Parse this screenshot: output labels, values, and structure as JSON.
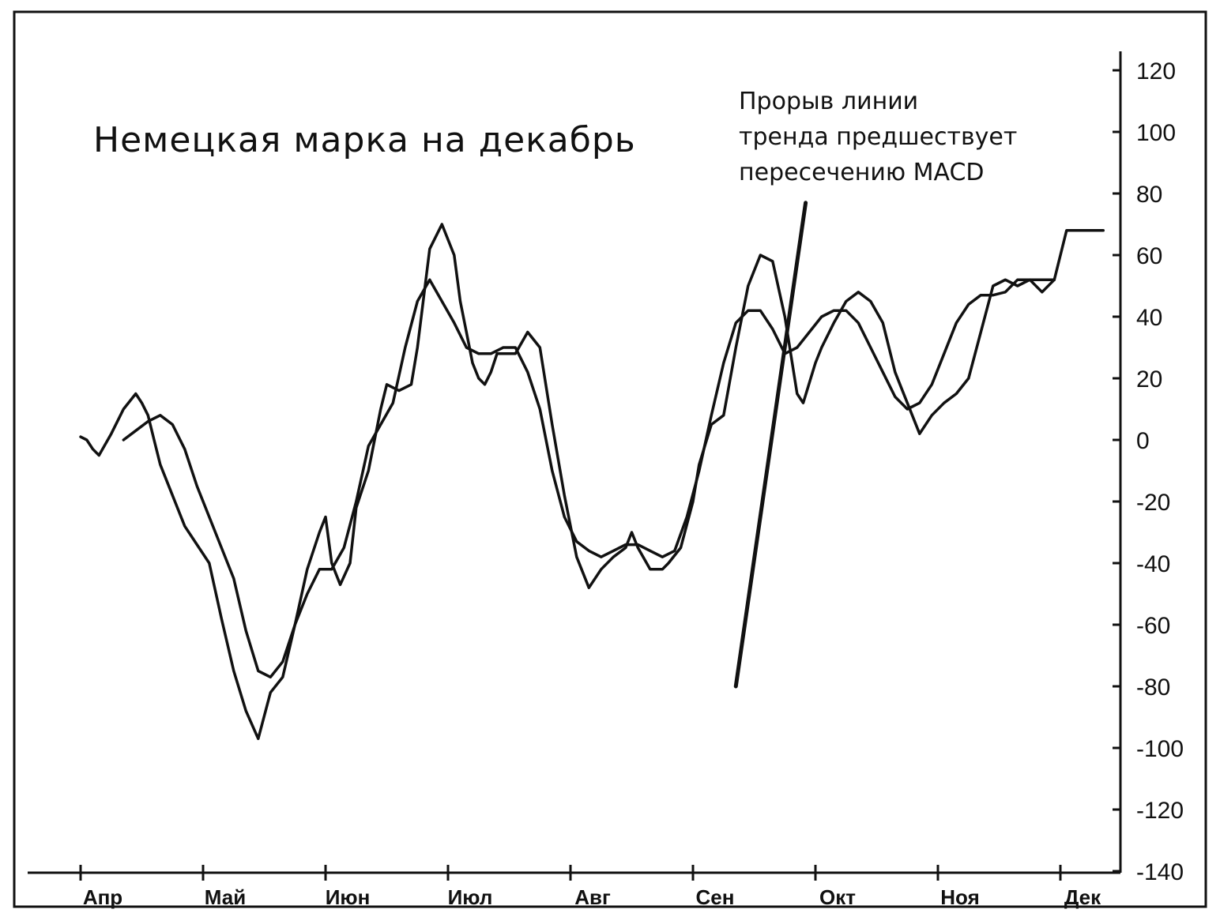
{
  "chart_data": {
    "type": "line",
    "title": "Немецкая марка на декабрь",
    "annotation": [
      "Прорыв линии",
      "тренда предшествует",
      "пересечению MACD"
    ],
    "months": [
      "Апр",
      "Май",
      "Июн",
      "Июл",
      "Авг",
      "Сен",
      "Окт",
      "Ноя",
      "Дек"
    ],
    "yticks": [
      "120",
      "100",
      "80",
      "60",
      "40",
      "20",
      "0",
      "-20",
      "-40",
      "-60",
      "-80",
      "-100",
      "-120",
      "-140"
    ],
    "ylim": [
      -140,
      120
    ],
    "xlim": [
      0,
      8.5
    ],
    "series": [
      {
        "x": [
          0,
          0.05,
          0.1,
          0.15,
          0.25,
          0.35,
          0.45,
          0.5,
          0.55,
          0.6,
          0.65,
          0.75,
          0.85,
          0.95,
          1.05,
          1.15,
          1.25,
          1.35,
          1.45,
          1.55,
          1.65,
          1.75,
          1.85,
          1.95,
          2.0,
          2.05,
          2.12,
          2.2,
          2.25,
          2.35,
          2.45,
          2.5,
          2.6,
          2.7,
          2.75,
          2.85,
          2.95,
          3.05,
          3.1,
          3.15,
          3.2,
          3.25,
          3.3,
          3.35,
          3.4,
          3.45,
          3.55,
          3.65,
          3.75,
          3.85,
          3.95,
          4.05,
          4.15,
          4.25,
          4.35,
          4.45,
          4.5,
          4.55,
          4.65,
          4.75,
          4.8,
          4.9,
          5.0,
          5.05,
          5.15,
          5.25,
          5.35,
          5.45,
          5.55,
          5.65,
          5.75,
          5.85,
          5.9,
          6.0,
          6.05,
          6.15,
          6.25,
          6.35,
          6.45,
          6.55,
          6.65,
          6.75,
          6.85,
          6.95,
          7.05,
          7.15,
          7.25,
          7.35,
          7.45,
          7.55,
          7.65,
          7.75,
          7.85,
          7.95,
          8.05,
          8.15,
          8.25,
          8.35
        ],
        "values": [
          1,
          0,
          -3,
          -5,
          2,
          10,
          15,
          12,
          8,
          0,
          -8,
          -18,
          -28,
          -34,
          -40,
          -58,
          -75,
          -88,
          -97,
          -82,
          -77,
          -60,
          -42,
          -30,
          -25,
          -40,
          -47,
          -40,
          -22,
          -10,
          10,
          18,
          16,
          18,
          30,
          62,
          70,
          60,
          45,
          35,
          25,
          20,
          18,
          22,
          28,
          28,
          28,
          35,
          30,
          5,
          -18,
          -38,
          -48,
          -42,
          -38,
          -35,
          -30,
          -35,
          -42,
          -42,
          -40,
          -35,
          -20,
          -8,
          5,
          8,
          30,
          50,
          60,
          58,
          40,
          15,
          12,
          25,
          30,
          38,
          45,
          48,
          45,
          38,
          22,
          12,
          2,
          8,
          12,
          15,
          20,
          35,
          50,
          52,
          50,
          52,
          48,
          52,
          68,
          68,
          68,
          68
        ]
      },
      {
        "x": [
          0.35,
          0.45,
          0.55,
          0.65,
          0.75,
          0.85,
          0.95,
          1.05,
          1.15,
          1.25,
          1.35,
          1.45,
          1.55,
          1.65,
          1.75,
          1.85,
          1.95,
          2.05,
          2.15,
          2.25,
          2.35,
          2.45,
          2.55,
          2.65,
          2.75,
          2.85,
          2.95,
          3.05,
          3.15,
          3.25,
          3.35,
          3.45,
          3.55,
          3.65,
          3.75,
          3.85,
          3.95,
          4.05,
          4.15,
          4.25,
          4.35,
          4.45,
          4.55,
          4.65,
          4.75,
          4.85,
          4.95,
          5.05,
          5.15,
          5.25,
          5.35,
          5.45,
          5.55,
          5.65,
          5.75,
          5.85,
          5.95,
          6.05,
          6.15,
          6.25,
          6.35,
          6.45,
          6.55,
          6.65,
          6.75,
          6.85,
          6.95,
          7.05,
          7.15,
          7.25,
          7.35,
          7.45,
          7.55,
          7.65,
          7.75,
          7.85,
          7.95
        ],
        "values": [
          0,
          3,
          6,
          8,
          5,
          -3,
          -15,
          -25,
          -35,
          -45,
          -62,
          -75,
          -77,
          -72,
          -60,
          -50,
          -42,
          -42,
          -35,
          -20,
          -2,
          5,
          12,
          30,
          45,
          52,
          45,
          38,
          30,
          28,
          28,
          30,
          30,
          22,
          10,
          -10,
          -25,
          -33,
          -36,
          -38,
          -36,
          -34,
          -34,
          -36,
          -38,
          -36,
          -25,
          -10,
          8,
          25,
          38,
          42,
          42,
          36,
          28,
          30,
          35,
          40,
          42,
          42,
          38,
          30,
          22,
          14,
          10,
          12,
          18,
          28,
          38,
          44,
          47,
          47,
          48,
          52,
          52,
          52,
          52
        ]
      }
    ],
    "trendline": {
      "x": [
        5.35,
        5.92
      ],
      "values": [
        -80,
        77
      ]
    },
    "grid": false
  }
}
